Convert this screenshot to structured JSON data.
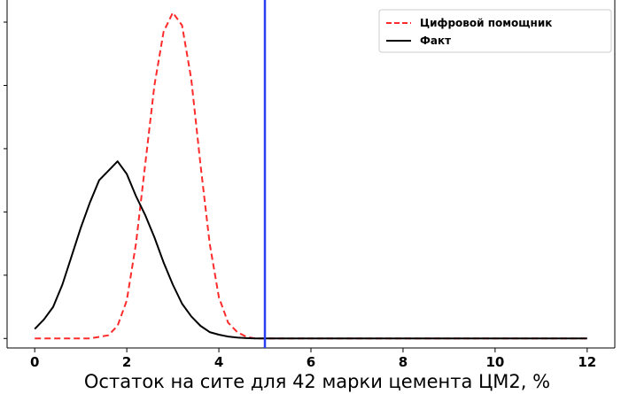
{
  "chart_data": {
    "type": "line",
    "xlabel": "Остаток на сите для 42 марки цемента ЦМ2, %",
    "ylabel": "",
    "xlim": [
      -0.6,
      12.6
    ],
    "ylim": [
      -0.03,
      1.07
    ],
    "x_ticks": [
      0,
      2,
      4,
      6,
      8,
      10,
      12
    ],
    "x_tick_labels": [
      "0",
      "2",
      "4",
      "6",
      "8",
      "10",
      "12"
    ],
    "y_ticks": [
      0,
      0.2,
      0.4,
      0.6,
      0.8,
      1.0
    ],
    "y_tick_labels_visible": false,
    "grid": false,
    "legend_position": "top-right",
    "vline": {
      "x": 5.0,
      "color": "#2a3ff0"
    },
    "series": [
      {
        "name": "Цифровой помощник",
        "style": "dashed",
        "color": "#ff2b2b",
        "x": [
          0,
          0.4,
          0.8,
          1.2,
          1.6,
          1.8,
          2.0,
          2.2,
          2.4,
          2.6,
          2.8,
          3.0,
          3.2,
          3.4,
          3.6,
          3.8,
          4.0,
          4.2,
          4.4,
          4.6,
          4.8,
          5.0,
          5.5,
          6,
          7,
          8,
          9,
          10,
          11,
          12
        ],
        "y": [
          0.0,
          0.0,
          0.0,
          0.0,
          0.01,
          0.04,
          0.12,
          0.3,
          0.55,
          0.8,
          0.97,
          1.03,
          0.99,
          0.82,
          0.55,
          0.3,
          0.13,
          0.05,
          0.02,
          0.005,
          0.0,
          0.0,
          0.0,
          0.0,
          0.0,
          0.0,
          0.0,
          0.0,
          0.0,
          0.0
        ]
      },
      {
        "name": "Факт",
        "style": "solid",
        "color": "#000000",
        "x": [
          0,
          0.2,
          0.4,
          0.6,
          0.8,
          1.0,
          1.2,
          1.4,
          1.6,
          1.8,
          2.0,
          2.2,
          2.4,
          2.6,
          2.8,
          3.0,
          3.2,
          3.4,
          3.6,
          3.8,
          4.0,
          4.2,
          4.4,
          4.6,
          4.8,
          5.0,
          5.5,
          6,
          7,
          8,
          9,
          10,
          11,
          12
        ],
        "y": [
          0.03,
          0.06,
          0.1,
          0.17,
          0.26,
          0.35,
          0.43,
          0.5,
          0.53,
          0.56,
          0.52,
          0.45,
          0.39,
          0.32,
          0.24,
          0.17,
          0.11,
          0.07,
          0.04,
          0.02,
          0.012,
          0.006,
          0.003,
          0.001,
          0.0,
          0.0,
          0.0,
          0.0,
          0.0,
          0.0,
          0.0,
          0.0,
          0.0,
          0.0
        ]
      }
    ]
  }
}
